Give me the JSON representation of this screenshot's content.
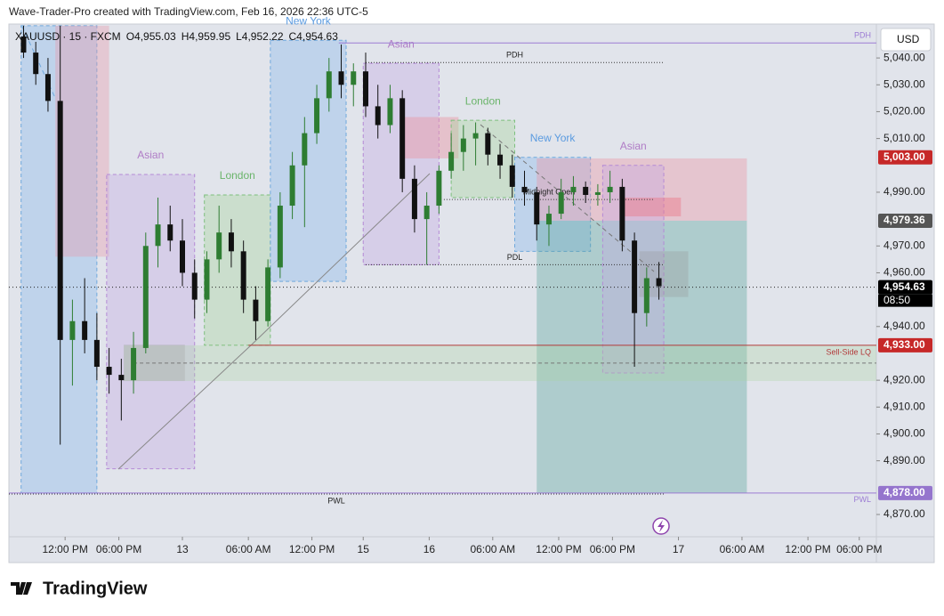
{
  "header": "Wave-Trader-Pro created with TradingView.com, Feb 16, 2026 22:36 UTC-5",
  "footer": "TradingView",
  "chart_data": {
    "type": "candlestick",
    "symbol": "XAUUSD · 15 · FXCM",
    "ohlc": [
      "O4,955.03",
      "H4,959.95",
      "L4,952.22",
      "C4,954.63"
    ],
    "currency": "USD",
    "up_color": "#2e7d32",
    "down_color": "#111111",
    "x": [
      6,
      11,
      16,
      21,
      26,
      31,
      36,
      41,
      46,
      51,
      56,
      61,
      66,
      71,
      76,
      81,
      86,
      91,
      96,
      101,
      106,
      111,
      116,
      121,
      126,
      131,
      136,
      141,
      146,
      151,
      156,
      161,
      166,
      171,
      176,
      181,
      186,
      191,
      196,
      201,
      206,
      211,
      216,
      221,
      226,
      231,
      236,
      241,
      246,
      251,
      256,
      261,
      266
    ],
    "open": [
      5048,
      5042,
      5034,
      5024,
      4935,
      4942,
      4935,
      4925,
      4922,
      4920,
      4932,
      4970,
      4978,
      4972,
      4960,
      4950,
      4965,
      4975,
      4968,
      4950,
      4942,
      4962,
      4985,
      5000,
      5012,
      5025,
      5035,
      5030,
      5035,
      5022,
      5015,
      5025,
      4995,
      4980,
      4985,
      4998,
      5005,
      5010,
      5012,
      5004,
      5000,
      4992,
      4990,
      4978,
      4982,
      4990,
      4992,
      4989,
      4990,
      4992,
      4972,
      4945,
      4958
    ],
    "high": [
      5052,
      5046,
      5040,
      5052,
      4950,
      4958,
      4945,
      4932,
      4928,
      4938,
      4975,
      4988,
      4985,
      4980,
      4965,
      4968,
      4985,
      4980,
      4972,
      4955,
      4965,
      4990,
      5005,
      5018,
      5030,
      5040,
      5045,
      5038,
      5042,
      5030,
      5030,
      5028,
      5000,
      4990,
      5000,
      5012,
      5015,
      5016,
      5014,
      5008,
      5004,
      4998,
      4992,
      4985,
      4995,
      4996,
      4994,
      4993,
      4998,
      4995,
      4975,
      4962,
      4964
    ],
    "low": [
      5040,
      5030,
      5020,
      4896,
      4918,
      4930,
      4920,
      4915,
      4905,
      4915,
      4930,
      4962,
      4968,
      4955,
      4943,
      4945,
      4960,
      4962,
      4945,
      4935,
      4940,
      4958,
      4980,
      4977,
      5008,
      5020,
      5025,
      5022,
      5018,
      5010,
      5012,
      4990,
      4975,
      4963,
      4982,
      4995,
      4998,
      5000,
      5000,
      4995,
      4988,
      4985,
      4972,
      4970,
      4980,
      4985,
      4986,
      4985,
      4986,
      4968,
      4925,
      4940,
      4950
    ],
    "close": [
      5042,
      5034,
      5024,
      4935,
      4942,
      4935,
      4925,
      4922,
      4920,
      4932,
      4970,
      4978,
      4972,
      4960,
      4950,
      4965,
      4975,
      4968,
      4950,
      4942,
      4962,
      4985,
      5000,
      5012,
      5025,
      5035,
      5030,
      5035,
      5022,
      5015,
      5025,
      4995,
      4980,
      4985,
      4998,
      5005,
      5010,
      5012,
      5004,
      5000,
      4992,
      4990,
      4978,
      4982,
      4990,
      4992,
      4989,
      4990,
      4992,
      4972,
      4945,
      4958,
      4955
    ],
    "xlim": [
      0,
      355
    ],
    "xticks": [
      {
        "value": 23,
        "label": "12:00 PM"
      },
      {
        "value": 45,
        "label": "06:00 PM"
      },
      {
        "value": 71,
        "label": "13"
      },
      {
        "value": 98,
        "label": "06:00 AM"
      },
      {
        "value": 124,
        "label": "12:00 PM"
      },
      {
        "value": 145,
        "label": "15"
      },
      {
        "value": 172,
        "label": "16"
      },
      {
        "value": 198,
        "label": "06:00 AM"
      },
      {
        "value": 225,
        "label": "12:00 PM"
      },
      {
        "value": 247,
        "label": "06:00 PM"
      },
      {
        "value": 274,
        "label": "17"
      },
      {
        "value": 300,
        "label": "06:00 AM"
      },
      {
        "value": 327,
        "label": "12:00 PM"
      },
      {
        "value": 348,
        "label": "06:00 PM"
      }
    ],
    "ylim": [
      4861.7,
      5052.3
    ],
    "yticks": [
      {
        "value": 5040,
        "label": "5,040.00"
      },
      {
        "value": 5030,
        "label": "5,030.00"
      },
      {
        "value": 5020,
        "label": "5,020.00"
      },
      {
        "value": 5010,
        "label": "5,010.00"
      },
      {
        "value": 4990,
        "label": "4,990.00"
      },
      {
        "value": 4970,
        "label": "4,970.00"
      },
      {
        "value": 4960,
        "label": "4,960.00"
      },
      {
        "value": 4940,
        "label": "4,940.00"
      },
      {
        "value": 4920,
        "label": "4,920.00"
      },
      {
        "value": 4910,
        "label": "4,910.00"
      },
      {
        "value": 4900,
        "label": "4,900.00"
      },
      {
        "value": 4890,
        "label": "4,890.00"
      },
      {
        "value": 4870,
        "label": "4,870.00"
      }
    ],
    "grid": false,
    "zones": [
      {
        "x0": 5,
        "x1": 36,
        "top": 5052,
        "bottom": 4878,
        "fill": "rgba(140,185,235,0.4)",
        "stroke": "#6fa8dc"
      },
      {
        "x0": 19,
        "x1": 41,
        "top": 5052,
        "bottom": 4966,
        "fill": "rgba(235,150,165,0.35)",
        "stroke": "none"
      },
      {
        "x0": 40,
        "x1": 76,
        "top": 4996.6,
        "bottom": 4887,
        "fill": "rgba(195,165,225,0.35)",
        "stroke": "#b48ad6",
        "label": "Asian",
        "label_color": "#b07cc6"
      },
      {
        "x0": 80,
        "x1": 107,
        "top": 4989,
        "bottom": 4933,
        "fill": "rgba(170,212,160,0.4)",
        "stroke": "#7cbf7c",
        "label": "London",
        "label_color": "#6ab46a"
      },
      {
        "x0": 107,
        "x1": 138,
        "top": 5046.6,
        "bottom": 4956.8,
        "fill": "rgba(140,185,235,0.4)",
        "stroke": "#6fa8dc",
        "label": "New York",
        "label_color": "#5b9be0"
      },
      {
        "x0": 145,
        "x1": 176,
        "top": 5038,
        "bottom": 4963,
        "fill": "rgba(195,165,225,0.35)",
        "stroke": "#b48ad6",
        "label": "Asian",
        "label_color": "#b07cc6"
      },
      {
        "x0": 161,
        "x1": 184,
        "top": 5018,
        "bottom": 5002.6,
        "fill": "rgba(235,150,165,0.45)",
        "stroke": "none"
      },
      {
        "x0": 181,
        "x1": 207,
        "top": 5016.8,
        "bottom": 4988,
        "fill": "rgba(170,212,160,0.4)",
        "stroke": "#7cbf7c",
        "label": "London",
        "label_color": "#6ab46a"
      },
      {
        "x0": 207,
        "x1": 238,
        "top": 5003,
        "bottom": 4968,
        "fill": "rgba(140,185,235,0.4)",
        "stroke": "#6fa8dc",
        "label": "New York",
        "label_color": "#5b9be0"
      },
      {
        "x0": 216,
        "x1": 302,
        "top": 5002.6,
        "bottom": 4979.4,
        "fill": "rgba(235,150,165,0.4)",
        "stroke": "none"
      },
      {
        "x0": 216,
        "x1": 302,
        "top": 4979.4,
        "bottom": 4878,
        "fill": "rgba(80,160,150,0.35)",
        "stroke": "none"
      },
      {
        "x0": 243,
        "x1": 268,
        "top": 5000,
        "bottom": 4922.7,
        "fill": "rgba(195,165,225,0.35)",
        "stroke": "#b48ad6",
        "label": "Asian",
        "label_color": "#b07cc6"
      },
      {
        "x0": 251,
        "x1": 275,
        "top": 4988,
        "bottom": 4981,
        "fill": "rgba(235,120,135,0.45)",
        "stroke": "none"
      },
      {
        "x0": 258,
        "x1": 278,
        "top": 4968,
        "bottom": 4951,
        "fill": "rgba(150,150,150,0.3)",
        "stroke": "none"
      },
      {
        "x0": 47,
        "x1": 355,
        "top": 4933,
        "bottom": 4919.7,
        "fill": "rgba(170,212,160,0.3)",
        "stroke": "none"
      },
      {
        "x0": 47,
        "x1": 72,
        "top": 4933.3,
        "bottom": 4919.7,
        "fill": "rgba(150,150,150,0.25)",
        "stroke": "none"
      }
    ],
    "levels": [
      {
        "value": 4954.63,
        "x0": 0,
        "x1": 355,
        "color": "#222",
        "dash": "1,3"
      },
      {
        "value": 5045.6,
        "x0": 135,
        "x1": 355,
        "color": "#9c7bd4",
        "dash": "none",
        "label": "PDH"
      },
      {
        "value": 5038.3,
        "x0": 146,
        "x1": 268,
        "color": "#333",
        "dash": "1,2",
        "label": "PDH"
      },
      {
        "value": 4963,
        "x0": 146,
        "x1": 268,
        "color": "#333",
        "dash": "1,2",
        "label": "PDL"
      },
      {
        "value": 4987.3,
        "x0": 178,
        "x1": 264,
        "color": "#333",
        "dash": "1,2",
        "label": "Midnight Open"
      },
      {
        "value": 4878,
        "x0": 0,
        "x1": 355,
        "color": "#9c7bd4",
        "dash": "none",
        "label": "PWL"
      },
      {
        "value": 4877.6,
        "x0": 0,
        "x1": 268,
        "color": "#333",
        "dash": "1,2",
        "label": "PWL"
      },
      {
        "value": 4933,
        "x0": 98,
        "x1": 355,
        "color": "#b23a3a",
        "dash": "none",
        "label": "Sell-Side LQ"
      },
      {
        "value": 4926.4,
        "x0": 51,
        "x1": 355,
        "color": "#777",
        "dash": "4,3"
      }
    ],
    "price_labels": [
      {
        "value": 5003,
        "label": "5,003.00",
        "color": "#c62828"
      },
      {
        "value": 4979.36,
        "label": "4,979.36",
        "color": "#555555"
      },
      {
        "value": 4954.63,
        "label": "4,954.63",
        "color": "#000000"
      },
      {
        "value": 4933,
        "label": "4,933.00",
        "color": "#c62828"
      },
      {
        "value": 4878,
        "label": "4,878.00",
        "color": "#9575cd"
      }
    ],
    "countdown": "08:50"
  }
}
